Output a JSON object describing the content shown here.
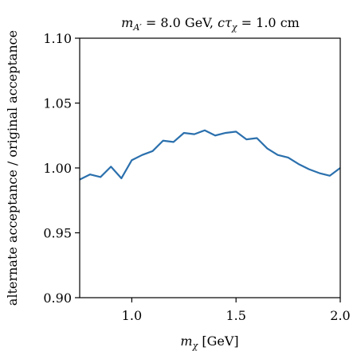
{
  "chart_data": {
    "type": "line",
    "title": "m_{A′} = 8.0 GeV, cτ_χ = 1.0 cm",
    "title_parts": {
      "m": "m",
      "m_sub": "A′",
      "mid": " = 8.0 GeV, ",
      "c": "cτ",
      "c_sub": "χ",
      "tail": " = 1.0 cm"
    },
    "xlabel": "m_χ [GeV]",
    "xlabel_parts": {
      "m": "m",
      "m_sub": "χ",
      "tail": " [GeV]"
    },
    "ylabel": "alternate acceptance / original acceptance",
    "xlim": [
      0.75,
      2.0
    ],
    "ylim": [
      0.9,
      1.1
    ],
    "xticks": [
      1.0,
      1.5,
      2.0
    ],
    "xtick_labels": [
      "1.0",
      "1.5",
      "2.0"
    ],
    "yticks": [
      0.9,
      0.95,
      1.0,
      1.05,
      1.1
    ],
    "ytick_labels": [
      "0.90",
      "0.95",
      "1.00",
      "1.05",
      "1.10"
    ],
    "grid": false,
    "series": [
      {
        "color": "#2b70ad",
        "x": [
          0.75,
          0.8,
          0.85,
          0.9,
          0.95,
          1.0,
          1.05,
          1.1,
          1.15,
          1.2,
          1.25,
          1.3,
          1.35,
          1.4,
          1.45,
          1.5,
          1.55,
          1.6,
          1.65,
          1.7,
          1.75,
          1.8,
          1.85,
          1.9,
          1.95,
          2.0
        ],
        "y": [
          0.991,
          0.995,
          0.993,
          1.001,
          0.992,
          1.006,
          1.01,
          1.013,
          1.021,
          1.02,
          1.027,
          1.026,
          1.029,
          1.025,
          1.027,
          1.028,
          1.022,
          1.023,
          1.015,
          1.01,
          1.008,
          1.003,
          0.999,
          0.996,
          0.994,
          1.0
        ]
      }
    ]
  }
}
